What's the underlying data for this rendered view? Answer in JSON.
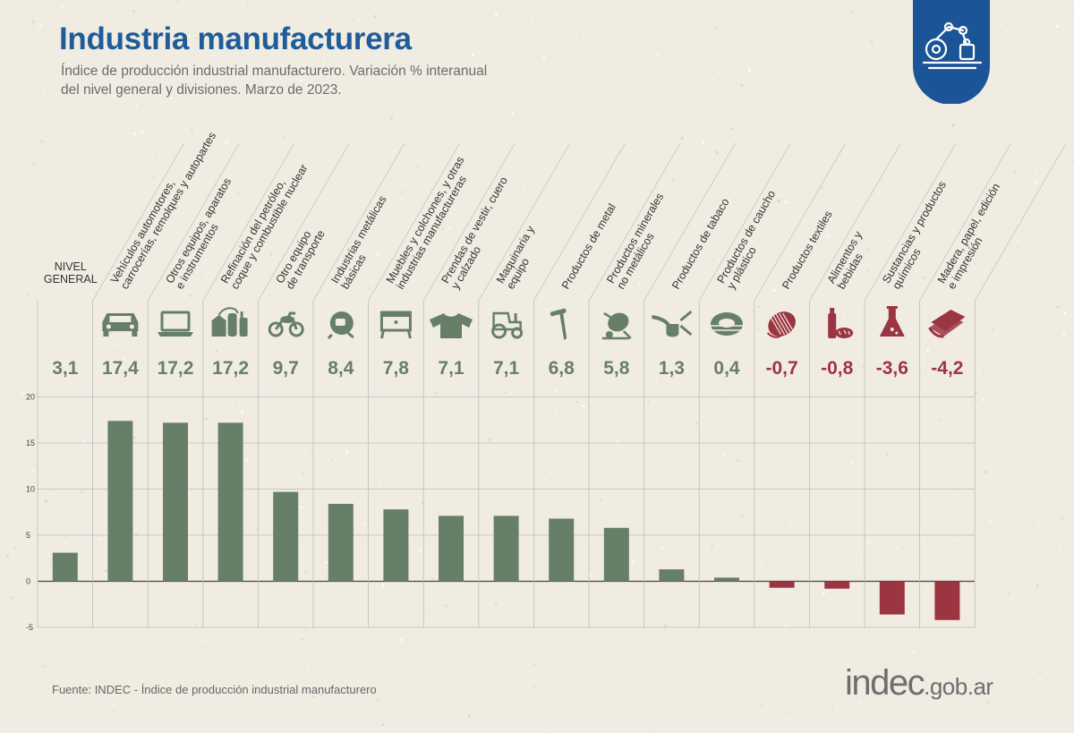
{
  "header": {
    "title": "Industria manufacturera",
    "subtitle_line1": "Índice de producción industrial manufacturero. Variación % interanual",
    "subtitle_line2": "del nivel general y divisiones. Marzo de 2023."
  },
  "footer": {
    "source": "Fuente: INDEC - Índice de producción industrial manufacturero",
    "logo_main": "indec",
    "logo_domain": ".gob.ar"
  },
  "colors": {
    "positive": "#677f67",
    "negative": "#9c3542",
    "title": "#1f5c9a",
    "badge": "#1b5597",
    "grid": "#bdbdbd",
    "background": "#f1ece2"
  },
  "chart_data": {
    "type": "bar",
    "categories": [
      [
        "NIVEL",
        "GENERAL"
      ],
      [
        "Vehículos automotores,",
        "carrocerías, remolques y autopartes"
      ],
      [
        "Otros equipos, aparatos",
        "e instrumentos"
      ],
      [
        "Refinación del petróleo,",
        "coque y combustible nuclear"
      ],
      [
        "Otro equipo",
        "de transporte"
      ],
      [
        "Industrias metálicas",
        "básicas"
      ],
      [
        "Muebles y colchones, y otras",
        "industrias manufactureras"
      ],
      [
        "Prendas de vestir, cuero",
        "y calzado"
      ],
      [
        "Maquinaria y",
        "equipo"
      ],
      [
        "Productos de metal"
      ],
      [
        "Productos minerales",
        "no metálicos"
      ],
      [
        "Productos de tabaco"
      ],
      [
        "Productos de caucho",
        "y plástico"
      ],
      [
        "Productos textiles"
      ],
      [
        "Alimentos y",
        "bebidas"
      ],
      [
        "Sustancias y productos",
        "químicos"
      ],
      [
        "Madera, papel, edición",
        "e impresión"
      ]
    ],
    "values": [
      3.1,
      17.4,
      17.2,
      17.2,
      9.7,
      8.4,
      7.8,
      7.1,
      7.1,
      6.8,
      5.8,
      1.3,
      0.4,
      -0.7,
      -0.8,
      -3.6,
      -4.2
    ],
    "value_labels": [
      "3,1",
      "17,4",
      "17,2",
      "17,2",
      "9,7",
      "8,4",
      "7,8",
      "7,1",
      "7,1",
      "6,8",
      "5,8",
      "1,3",
      "0,4",
      "-0,7",
      "-0,8",
      "-3,6",
      "-4,2"
    ],
    "icons": [
      "",
      "car-icon",
      "laptop-icon",
      "refinery-icon",
      "motorcycle-icon",
      "metal-worker-icon",
      "nightstand-icon",
      "shirt-icon",
      "tractor-icon",
      "nail-icon",
      "cement-mixer-icon",
      "pipe-icon",
      "tire-icon",
      "thread-spool-icon",
      "food-icon",
      "flask-icon",
      "paper-icon"
    ],
    "yticks": [
      20,
      15,
      10,
      5,
      0,
      -5
    ],
    "ylim": [
      -5,
      20
    ],
    "grid": true,
    "legend": "none"
  }
}
